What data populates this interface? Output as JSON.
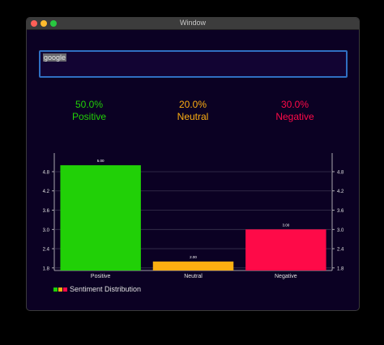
{
  "window": {
    "title": "Window"
  },
  "search": {
    "value": "google"
  },
  "stats": [
    {
      "percent": "50.0%",
      "label": "Positive",
      "color": "#21d007"
    },
    {
      "percent": "20.0%",
      "label": "Neutral",
      "color": "#fdae11"
    },
    {
      "percent": "30.0%",
      "label": "Negative",
      "color": "#fe0a48"
    }
  ],
  "legend": {
    "label": "Sentiment Distribution"
  },
  "chart_data": {
    "type": "bar",
    "categories": [
      "Positive",
      "Neutral",
      "Negative"
    ],
    "values": [
      5.0,
      2.0,
      3.0
    ],
    "value_labels": [
      "5.00",
      "2.00",
      "3.00"
    ],
    "colors": [
      "#21d007",
      "#fdae11",
      "#fe0a48"
    ],
    "yticks": [
      "1.8",
      "2.4",
      "3.0",
      "3.6",
      "4.2",
      "4.8"
    ],
    "ylim": [
      1.72,
      5.38
    ],
    "grid": true,
    "legend": "bottom-left",
    "series": [
      {
        "name": "Sentiment Distribution",
        "values": [
          5.0,
          2.0,
          3.0
        ]
      }
    ]
  }
}
